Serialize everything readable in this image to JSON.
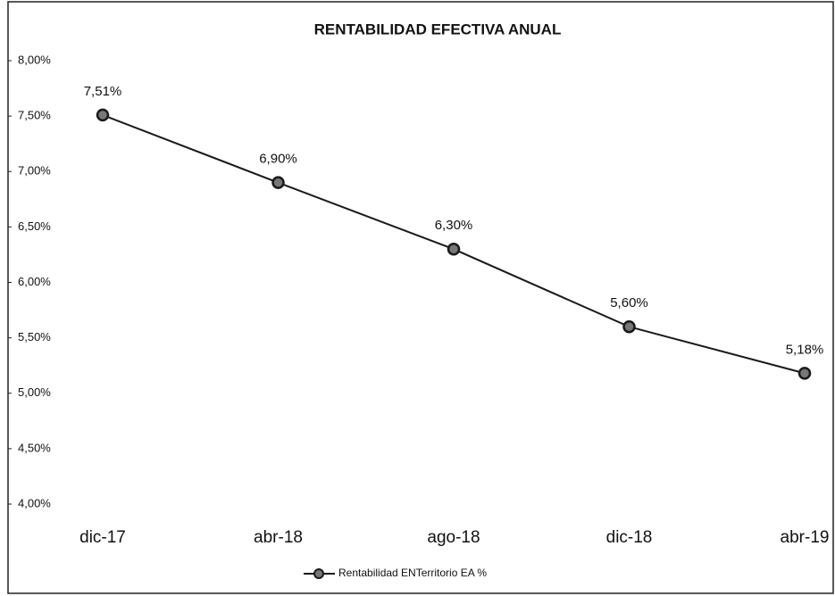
{
  "chart_data": {
    "type": "line",
    "title": "RENTABILIDAD EFECTIVA ANUAL",
    "categories": [
      "dic-17",
      "abr-18",
      "ago-18",
      "dic-18",
      "abr-19"
    ],
    "series": [
      {
        "name": "Rentabilidad ENTerritorio EA %",
        "color": "#1a1a1a",
        "values": [
          7.51,
          6.9,
          6.3,
          5.6,
          5.18
        ],
        "value_labels": [
          "7,51%",
          "6,90%",
          "6,30%",
          "5,60%",
          "5,18%"
        ]
      }
    ],
    "ylim": [
      4,
      8
    ],
    "yticks": [
      {
        "value": 4,
        "label": "4,00%"
      },
      {
        "value": 4.5,
        "label": "4,50%"
      },
      {
        "value": 5,
        "label": "5,00%"
      },
      {
        "value": 5.5,
        "label": "5,50%"
      },
      {
        "value": 6,
        "label": "6,00%"
      },
      {
        "value": 6.5,
        "label": "6,50%"
      },
      {
        "value": 7,
        "label": "7,00%"
      },
      {
        "value": 7.5,
        "label": "7,50%"
      },
      {
        "value": 8,
        "label": "8,00%"
      }
    ],
    "grid": false,
    "legend": "bottom"
  }
}
